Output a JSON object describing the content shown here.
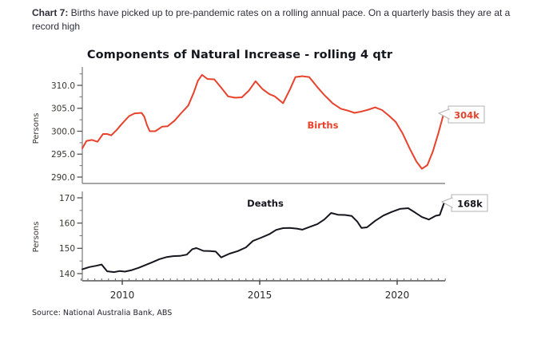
{
  "header": {
    "prefix": "Chart 7:",
    "text": " Births have picked up to pre-pandemic rates on a rolling annual pace. On a quarterly basis they are at a record high"
  },
  "chart": {
    "title": "Components of Natural Increase - rolling 4 qtr",
    "source": "Source: National Australia Bank, ABS",
    "x_ticks": [
      {
        "label": "2010",
        "year": 2010
      },
      {
        "label": "2015",
        "year": 2015
      },
      {
        "label": "2020",
        "year": 2020
      }
    ],
    "colors": {
      "births_line": "#e8422c",
      "deaths_line": "#16161e",
      "spine": "#999999",
      "top_axis": "#888888",
      "bottom_axis": "#555555",
      "callout_border": "#b3b3b3"
    }
  },
  "chart_data": [
    {
      "type": "line",
      "name": "births-rolling-4qtr",
      "series_label": "Births",
      "end_callout": "304k",
      "color": "#e8422c",
      "ylabel": "Persons",
      "xlabel": "",
      "xlim": [
        2008.4,
        2022.1
      ],
      "ylim": [
        289,
        313.5
      ],
      "yticks": [
        {
          "label": "310.0",
          "value": 310
        },
        {
          "label": "305.0",
          "value": 305
        },
        {
          "label": "300.0",
          "value": 300
        },
        {
          "label": "295.0",
          "value": 295
        },
        {
          "label": "290.0",
          "value": 290
        }
      ],
      "yticks_minor": [
        312.5,
        307.5,
        302.5,
        297.5,
        292.5
      ],
      "points": [
        [
          2008.55,
          296.3
        ],
        [
          2008.7,
          297.9
        ],
        [
          2008.9,
          298.1
        ],
        [
          2009.1,
          297.7
        ],
        [
          2009.3,
          299.4
        ],
        [
          2009.45,
          299.4
        ],
        [
          2009.6,
          299.1
        ],
        [
          2009.8,
          300.3
        ],
        [
          2010.0,
          301.7
        ],
        [
          2010.25,
          303.3
        ],
        [
          2010.45,
          303.9
        ],
        [
          2010.7,
          304.0
        ],
        [
          2010.8,
          303.2
        ],
        [
          2010.9,
          301.3
        ],
        [
          2011.0,
          300.0
        ],
        [
          2011.2,
          300.0
        ],
        [
          2011.45,
          301.0
        ],
        [
          2011.65,
          301.1
        ],
        [
          2011.9,
          302.3
        ],
        [
          2012.15,
          304.0
        ],
        [
          2012.4,
          305.6
        ],
        [
          2012.6,
          308.4
        ],
        [
          2012.75,
          311.0
        ],
        [
          2012.9,
          312.3
        ],
        [
          2013.1,
          311.4
        ],
        [
          2013.35,
          311.3
        ],
        [
          2013.6,
          309.5
        ],
        [
          2013.85,
          307.6
        ],
        [
          2014.1,
          307.3
        ],
        [
          2014.35,
          307.4
        ],
        [
          2014.6,
          308.8
        ],
        [
          2014.85,
          310.9
        ],
        [
          2015.1,
          309.2
        ],
        [
          2015.35,
          308.1
        ],
        [
          2015.55,
          307.6
        ],
        [
          2015.85,
          306.1
        ],
        [
          2016.1,
          309.1
        ],
        [
          2016.3,
          311.8
        ],
        [
          2016.55,
          312.0
        ],
        [
          2016.8,
          311.8
        ],
        [
          2017.1,
          309.6
        ],
        [
          2017.35,
          307.9
        ],
        [
          2017.65,
          306.1
        ],
        [
          2017.95,
          304.9
        ],
        [
          2018.2,
          304.5
        ],
        [
          2018.45,
          304.0
        ],
        [
          2018.7,
          304.3
        ],
        [
          2018.95,
          304.7
        ],
        [
          2019.2,
          305.2
        ],
        [
          2019.45,
          304.6
        ],
        [
          2019.7,
          303.4
        ],
        [
          2019.95,
          302.0
        ],
        [
          2020.2,
          299.5
        ],
        [
          2020.45,
          296.3
        ],
        [
          2020.7,
          293.4
        ],
        [
          2020.9,
          291.8
        ],
        [
          2021.1,
          292.6
        ],
        [
          2021.3,
          295.6
        ],
        [
          2021.5,
          299.6
        ],
        [
          2021.7,
          304.0
        ]
      ]
    },
    {
      "type": "line",
      "name": "deaths-rolling-4qtr",
      "series_label": "Deaths",
      "end_callout": "168k",
      "color": "#16161e",
      "ylabel": "Persons",
      "xlabel": "",
      "xlim": [
        2008.4,
        2022.1
      ],
      "ylim": [
        138,
        172
      ],
      "yticks": [
        {
          "label": "170",
          "value": 170
        },
        {
          "label": "160",
          "value": 160
        },
        {
          "label": "150",
          "value": 150
        },
        {
          "label": "140",
          "value": 140
        }
      ],
      "yticks_minor": [
        165,
        155,
        145
      ],
      "points": [
        [
          2008.55,
          141.7
        ],
        [
          2008.8,
          142.6
        ],
        [
          2009.05,
          143.1
        ],
        [
          2009.25,
          143.6
        ],
        [
          2009.45,
          140.9
        ],
        [
          2009.7,
          140.6
        ],
        [
          2009.9,
          141.0
        ],
        [
          2010.1,
          140.8
        ],
        [
          2010.35,
          141.4
        ],
        [
          2010.6,
          142.3
        ],
        [
          2010.85,
          143.4
        ],
        [
          2011.1,
          144.5
        ],
        [
          2011.35,
          145.7
        ],
        [
          2011.6,
          146.5
        ],
        [
          2011.85,
          146.9
        ],
        [
          2012.1,
          147.0
        ],
        [
          2012.35,
          147.5
        ],
        [
          2012.55,
          149.7
        ],
        [
          2012.7,
          150.1
        ],
        [
          2012.95,
          149.0
        ],
        [
          2013.2,
          148.9
        ],
        [
          2013.4,
          148.7
        ],
        [
          2013.6,
          146.4
        ],
        [
          2013.9,
          147.9
        ],
        [
          2014.2,
          148.9
        ],
        [
          2014.5,
          150.4
        ],
        [
          2014.75,
          152.9
        ],
        [
          2015.05,
          154.2
        ],
        [
          2015.35,
          155.6
        ],
        [
          2015.6,
          157.3
        ],
        [
          2015.85,
          158.0
        ],
        [
          2016.1,
          158.1
        ],
        [
          2016.35,
          157.8
        ],
        [
          2016.55,
          157.4
        ],
        [
          2016.85,
          158.6
        ],
        [
          2017.1,
          159.6
        ],
        [
          2017.35,
          161.4
        ],
        [
          2017.6,
          164.0
        ],
        [
          2017.85,
          163.3
        ],
        [
          2018.1,
          163.2
        ],
        [
          2018.35,
          162.8
        ],
        [
          2018.55,
          160.6
        ],
        [
          2018.7,
          158.1
        ],
        [
          2018.9,
          158.3
        ],
        [
          2019.2,
          160.9
        ],
        [
          2019.5,
          163.0
        ],
        [
          2019.8,
          164.4
        ],
        [
          2020.1,
          165.6
        ],
        [
          2020.4,
          165.9
        ],
        [
          2020.65,
          164.2
        ],
        [
          2020.9,
          162.4
        ],
        [
          2021.15,
          161.4
        ],
        [
          2021.4,
          162.9
        ],
        [
          2021.55,
          163.2
        ],
        [
          2021.7,
          167.8
        ]
      ]
    }
  ]
}
